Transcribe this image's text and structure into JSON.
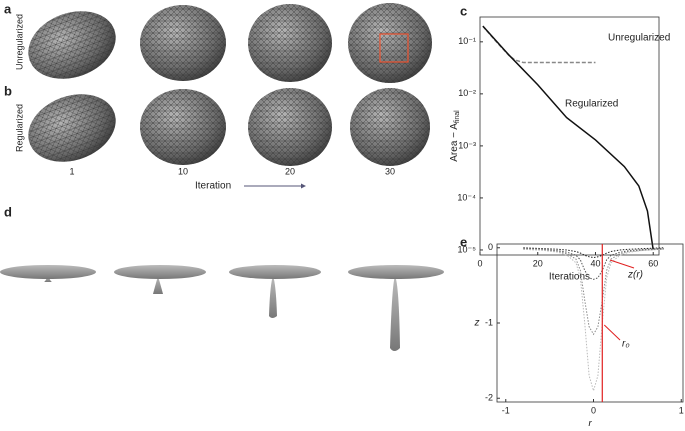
{
  "panels": {
    "a": "a",
    "b": "b",
    "c": "c",
    "d": "d",
    "e": "e"
  },
  "row_labels": [
    "Unregularized",
    "Regularized"
  ],
  "iteration_labels": [
    "1",
    "10",
    "20",
    "30"
  ],
  "iteration_axis": "Iteration",
  "chart_data": [
    {
      "type": "line",
      "xlabel": "Iterations",
      "ylabel": "Area − A",
      "ylabel_sub": "final",
      "log_y": true,
      "xlim": [
        0,
        62
      ],
      "ylim": [
        8e-06,
        0.3
      ],
      "xticks": [
        0,
        20,
        40,
        60
      ],
      "yticks": [
        {
          "value": 0.1,
          "label": "10⁻¹"
        },
        {
          "value": 0.01,
          "label": "10⁻²"
        },
        {
          "value": 0.001,
          "label": "10⁻³"
        },
        {
          "value": 0.0001,
          "label": "10⁻⁴"
        },
        {
          "value": 1e-05,
          "label": "10⁻⁵"
        }
      ],
      "series": [
        {
          "name": "Unregularized",
          "color": "#888888",
          "dash": true,
          "x": [
            1,
            5,
            10,
            12,
            15,
            20,
            30,
            40
          ],
          "values": [
            0.2,
            0.11,
            0.055,
            0.045,
            0.04,
            0.04,
            0.04,
            0.04
          ]
        },
        {
          "name": "Regularized",
          "color": "#111111",
          "dash": false,
          "x": [
            1,
            10,
            20,
            30,
            40,
            50,
            55,
            58,
            60
          ],
          "values": [
            0.2,
            0.056,
            0.015,
            0.0035,
            0.0013,
            0.0004,
            0.00017,
            5.6e-05,
            1e-05
          ]
        }
      ]
    },
    {
      "type": "line",
      "xlabel": "r",
      "ylabel": "z",
      "xlim": [
        -1.1,
        1.02
      ],
      "ylim": [
        -2.05,
        0.05
      ],
      "xticks": [
        -1,
        0,
        1
      ],
      "yticks": [
        0,
        -1,
        -2
      ],
      "x": [
        -0.8,
        -0.6,
        -0.4,
        -0.3,
        -0.2,
        -0.15,
        -0.1,
        -0.05,
        0,
        0.05,
        0.1,
        0.15,
        0.2,
        0.3,
        0.4,
        0.6,
        0.8
      ],
      "series": [
        {
          "color": "#222222",
          "values": [
            0,
            -0.01,
            -0.02,
            -0.03,
            -0.05,
            -0.07,
            -0.1,
            -0.12,
            -0.13,
            -0.12,
            -0.1,
            -0.07,
            -0.05,
            -0.03,
            -0.02,
            -0.01,
            0
          ]
        },
        {
          "color": "#555555",
          "values": [
            -0.01,
            -0.02,
            -0.04,
            -0.06,
            -0.1,
            -0.16,
            -0.3,
            -0.4,
            -0.42,
            -0.4,
            -0.3,
            -0.16,
            -0.1,
            -0.06,
            -0.04,
            -0.02,
            -0.01
          ]
        },
        {
          "color": "#888888",
          "values": [
            -0.02,
            -0.03,
            -0.05,
            -0.08,
            -0.15,
            -0.3,
            -0.7,
            -1.05,
            -1.15,
            -1.05,
            -0.7,
            -0.3,
            -0.15,
            -0.08,
            -0.05,
            -0.03,
            -0.02
          ]
        },
        {
          "color": "#bbbbbb",
          "values": [
            -0.02,
            -0.03,
            -0.06,
            -0.1,
            -0.2,
            -0.4,
            -1.0,
            -1.7,
            -1.9,
            -1.7,
            -1.0,
            -0.4,
            -0.2,
            -0.1,
            -0.06,
            -0.03,
            -0.02
          ]
        }
      ],
      "annotations": {
        "curve": "z(r)",
        "r0_label": "r₀",
        "r0": 0.1
      }
    }
  ]
}
